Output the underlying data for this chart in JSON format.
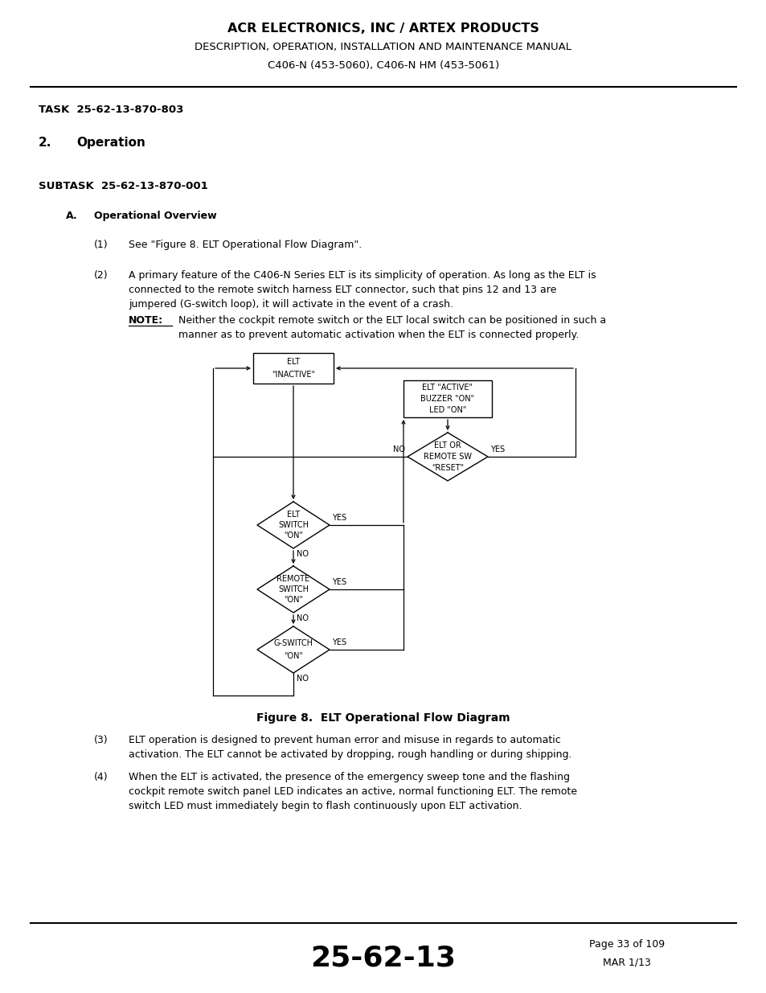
{
  "title_line1": "ACR ELECTRONICS, INC / ARTEX PRODUCTS",
  "title_line2": "DESCRIPTION, OPERATION, INSTALLATION AND MAINTENANCE MANUAL",
  "title_line3": "C406-N (453-5060), C406-N HM (453-5061)",
  "task_label": "TASK  25-62-13-870-803",
  "section_num": "2.",
  "section_title": "Operation",
  "subtask_label": "SUBTASK  25-62-13-870-001",
  "subsection_letter": "A.",
  "subsection_title": "Operational Overview",
  "para1_num": "(1)",
  "para1_text": "See \"Figure 8. ELT Operational Flow Diagram\".",
  "para2_num": "(2)",
  "para2_text_l1": "A primary feature of the C406-N Series ELT is its simplicity of operation. As long as the ELT is",
  "para2_text_l2": "connected to the remote switch harness ELT connector, such that pins 12 and 13 are",
  "para2_text_l3": "jumpered (G-switch loop), it will activate in the event of a crash.",
  "note_label": "NOTE:",
  "note_text_l1": "Neither the cockpit remote switch or the ELT local switch can be positioned in such a",
  "note_text_l2": "manner as to prevent automatic activation when the ELT is connected properly.",
  "fig_caption": "Figure 8.  ELT Operational Flow Diagram",
  "para3_num": "(3)",
  "para3_text_l1": "ELT operation is designed to prevent human error and misuse in regards to automatic",
  "para3_text_l2": "activation. The ELT cannot be activated by dropping, rough handling or during shipping.",
  "para4_num": "(4)",
  "para4_text_l1": "When the ELT is activated, the presence of the emergency sweep tone and the flashing",
  "para4_text_l2": "cockpit remote switch panel LED indicates an active, normal functioning ELT. The remote",
  "para4_text_l3": "switch LED must immediately begin to flash continuously upon ELT activation.",
  "footer_num": "25-62-13",
  "footer_page": "Page 33 of 109",
  "footer_date": "MAR 1/13",
  "bg_color": "#ffffff"
}
